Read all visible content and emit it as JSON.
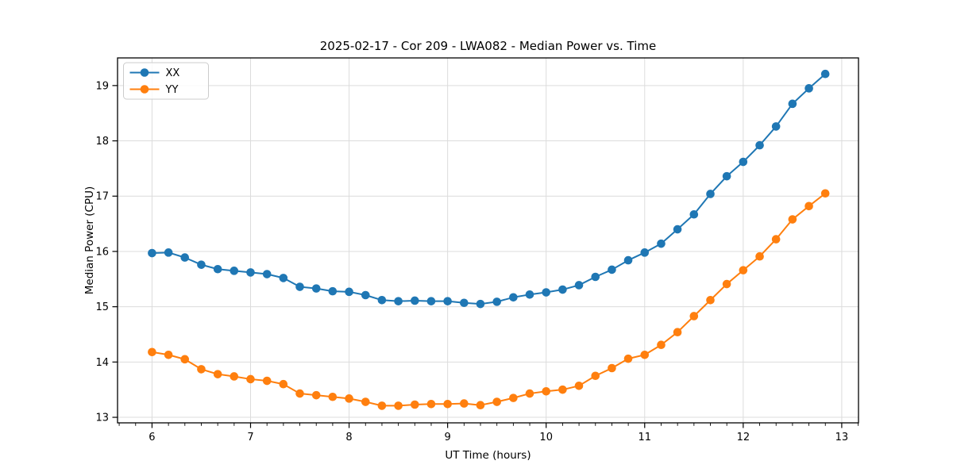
{
  "chart_data": {
    "type": "line",
    "title": "2025-02-17 - Cor 209 - LWA082 - Median Power vs. Time",
    "xlabel": "UT Time (hours)",
    "ylabel": "Median Power (CPU)",
    "xlim": [
      5.65,
      13.17
    ],
    "ylim": [
      12.9,
      19.5
    ],
    "x_ticks": [
      6,
      7,
      8,
      9,
      10,
      11,
      12,
      13
    ],
    "y_ticks": [
      13,
      14,
      15,
      16,
      17,
      18,
      19
    ],
    "x_minor_tick_step": 0.16667,
    "grid": true,
    "grid_color": "#dcdcdc",
    "legend_position": "upper-left",
    "x": [
      6.0,
      6.167,
      6.333,
      6.5,
      6.667,
      6.833,
      7.0,
      7.167,
      7.333,
      7.5,
      7.667,
      7.833,
      8.0,
      8.167,
      8.333,
      8.5,
      8.667,
      8.833,
      9.0,
      9.167,
      9.333,
      9.5,
      9.667,
      9.833,
      10.0,
      10.167,
      10.333,
      10.5,
      10.667,
      10.833,
      11.0,
      11.167,
      11.333,
      11.5,
      11.667,
      11.833,
      12.0,
      12.167,
      12.333,
      12.5,
      12.667,
      12.833
    ],
    "series": [
      {
        "name": "XX",
        "color": "#1f77b4",
        "values": [
          15.97,
          15.98,
          15.89,
          15.76,
          15.68,
          15.65,
          15.62,
          15.59,
          15.52,
          15.36,
          15.33,
          15.28,
          15.27,
          15.21,
          15.12,
          15.1,
          15.11,
          15.1,
          15.1,
          15.07,
          15.05,
          15.09,
          15.17,
          15.22,
          15.26,
          15.31,
          15.39,
          15.54,
          15.67,
          15.84,
          15.98,
          16.14,
          16.4,
          16.67,
          17.04,
          17.36,
          17.62,
          17.92,
          18.26,
          18.67,
          18.95,
          19.21
        ]
      },
      {
        "name": "YY",
        "color": "#ff7f0e",
        "values": [
          14.18,
          14.13,
          14.05,
          13.87,
          13.78,
          13.74,
          13.69,
          13.66,
          13.6,
          13.43,
          13.4,
          13.37,
          13.34,
          13.28,
          13.21,
          13.21,
          13.23,
          13.24,
          13.24,
          13.25,
          13.22,
          13.28,
          13.35,
          13.43,
          13.47,
          13.5,
          13.57,
          13.75,
          13.89,
          14.06,
          14.13,
          14.31,
          14.54,
          14.83,
          15.12,
          15.41,
          15.66,
          15.91,
          16.22,
          16.58,
          16.82,
          17.05
        ]
      }
    ]
  }
}
